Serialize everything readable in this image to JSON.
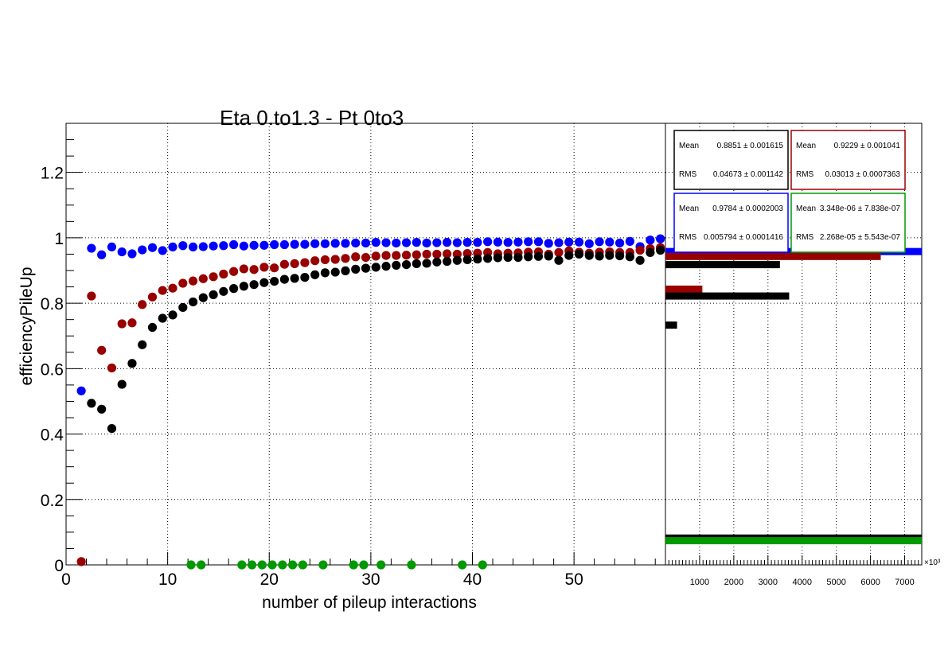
{
  "chart_data": [
    {
      "type": "scatter",
      "title": "Eta 0.to1.3 - Pt 0to3",
      "xlabel": "number of pileup interactions",
      "ylabel": "efficiencyPileUp",
      "xlim": [
        0,
        59
      ],
      "ylim": [
        0,
        1.35
      ],
      "x_ticks": [
        "0",
        "10",
        "20",
        "30",
        "40",
        "50"
      ],
      "y_ticks": [
        "0",
        "0.2",
        "0.4",
        "0.6",
        "0.8",
        "1",
        "1.2"
      ],
      "grid": true,
      "colors": {
        "black": "#000000",
        "red": "#990000",
        "blue": "#0000ff",
        "green": "#009900"
      },
      "series": [
        {
          "color": "#0000ff",
          "x": [
            1.5,
            2.5,
            3.5,
            4.5,
            5.5,
            6.5,
            7.5,
            8.5,
            9.5,
            10.5,
            11.5,
            12.5,
            13.5,
            14.5,
            15.5,
            16.5,
            17.5,
            18.5,
            19.5,
            20.5,
            21.5,
            22.5,
            23.5,
            24.5,
            25.5,
            26.5,
            27.5,
            28.5,
            29.5,
            30.5,
            31.5,
            32.5,
            33.5,
            34.5,
            35.5,
            36.5,
            37.5,
            38.5,
            39.5,
            40.5,
            41.5,
            42.5,
            43.5,
            44.5,
            45.5,
            46.5,
            47.5,
            48.5,
            49.5,
            50.5,
            51.5,
            52.5,
            53.5,
            54.5,
            55.5,
            56.5,
            57.5,
            58.5
          ],
          "y": [
            0.532,
            0.968,
            0.948,
            0.972,
            0.957,
            0.951,
            0.963,
            0.97,
            0.961,
            0.972,
            0.976,
            0.972,
            0.973,
            0.975,
            0.976,
            0.979,
            0.975,
            0.977,
            0.977,
            0.979,
            0.979,
            0.98,
            0.98,
            0.982,
            0.982,
            0.983,
            0.983,
            0.984,
            0.984,
            0.986,
            0.985,
            0.984,
            0.985,
            0.986,
            0.984,
            0.985,
            0.986,
            0.985,
            0.986,
            0.986,
            0.988,
            0.987,
            0.986,
            0.987,
            0.988,
            0.988,
            0.983,
            0.985,
            0.987,
            0.987,
            0.982,
            0.988,
            0.987,
            0.984,
            0.989,
            0.973,
            0.993,
            0.997
          ]
        },
        {
          "color": "#990000",
          "x": [
            1.5,
            2.5,
            3.5,
            4.5,
            5.5,
            6.5,
            7.5,
            8.5,
            9.5,
            10.5,
            11.5,
            12.5,
            13.5,
            14.5,
            15.5,
            16.5,
            17.5,
            18.5,
            19.5,
            20.5,
            21.5,
            22.5,
            23.5,
            24.5,
            25.5,
            26.5,
            27.5,
            28.5,
            29.5,
            30.5,
            31.5,
            32.5,
            33.5,
            34.5,
            35.5,
            36.5,
            37.5,
            38.5,
            39.5,
            40.5,
            41.5,
            42.5,
            43.5,
            44.5,
            45.5,
            46.5,
            47.5,
            48.5,
            49.5,
            50.5,
            51.5,
            52.5,
            53.5,
            54.5,
            55.5,
            56.5,
            57.5,
            58.5
          ],
          "y": [
            0.01,
            0.822,
            0.656,
            0.602,
            0.737,
            0.74,
            0.796,
            0.819,
            0.839,
            0.846,
            0.861,
            0.868,
            0.875,
            0.881,
            0.889,
            0.897,
            0.905,
            0.903,
            0.91,
            0.908,
            0.919,
            0.921,
            0.924,
            0.93,
            0.933,
            0.934,
            0.937,
            0.942,
            0.94,
            0.944,
            0.946,
            0.946,
            0.947,
            0.948,
            0.95,
            0.95,
            0.951,
            0.95,
            0.952,
            0.953,
            0.955,
            0.951,
            0.953,
            0.954,
            0.956,
            0.957,
            0.95,
            0.955,
            0.96,
            0.956,
            0.953,
            0.956,
            0.957,
            0.955,
            0.955,
            0.962,
            0.967,
            0.97
          ]
        },
        {
          "color": "#000000",
          "x": [
            2.5,
            3.5,
            4.5,
            5.5,
            6.5,
            7.5,
            8.5,
            9.5,
            10.5,
            11.5,
            12.5,
            13.5,
            14.5,
            15.5,
            16.5,
            17.5,
            18.5,
            19.5,
            20.5,
            21.5,
            22.5,
            23.5,
            24.5,
            25.5,
            26.5,
            27.5,
            28.5,
            29.5,
            30.5,
            31.5,
            32.5,
            33.5,
            34.5,
            35.5,
            36.5,
            37.5,
            38.5,
            39.5,
            40.5,
            41.5,
            42.5,
            43.5,
            44.5,
            45.5,
            46.5,
            47.5,
            48.5,
            49.5,
            50.5,
            51.5,
            52.5,
            53.5,
            54.5,
            55.5,
            56.5,
            57.5,
            58.5
          ],
          "y": [
            0.494,
            0.476,
            0.417,
            0.552,
            0.616,
            0.673,
            0.726,
            0.754,
            0.764,
            0.787,
            0.804,
            0.817,
            0.826,
            0.836,
            0.845,
            0.852,
            0.857,
            0.863,
            0.867,
            0.873,
            0.876,
            0.879,
            0.887,
            0.893,
            0.895,
            0.899,
            0.904,
            0.907,
            0.91,
            0.913,
            0.916,
            0.918,
            0.921,
            0.922,
            0.926,
            0.928,
            0.931,
            0.933,
            0.935,
            0.937,
            0.939,
            0.94,
            0.94,
            0.942,
            0.943,
            0.944,
            0.931,
            0.946,
            0.95,
            0.946,
            0.944,
            0.946,
            0.945,
            0.942,
            0.931,
            0.955,
            0.962
          ]
        },
        {
          "color": "#009900",
          "x": [
            12.3,
            13.3,
            17.3,
            18.3,
            19.3,
            20.3,
            21.3,
            22.3,
            23.3,
            25.3,
            28.3,
            29.3,
            31.0,
            34.0,
            39.0,
            41.0
          ],
          "y": [
            0,
            0,
            0,
            0,
            0,
            0,
            0,
            0,
            0,
            0,
            0,
            0,
            0,
            0,
            0,
            0
          ]
        }
      ]
    },
    {
      "type": "bar",
      "orientation": "horizontal",
      "xlim": [
        0,
        7500
      ],
      "x_ticks": [
        "1000",
        "2000",
        "3000",
        "4000",
        "5000",
        "6000",
        "7000"
      ],
      "x_multiplier": "×10³",
      "bins": [
        {
          "color": "#0000ff",
          "y": 0.958,
          "value": 7500
        },
        {
          "color": "#990000",
          "y": 0.943,
          "value": 6300
        },
        {
          "color": "#000000",
          "y": 0.918,
          "value": 3350
        },
        {
          "color": "#990000",
          "y": 0.843,
          "value": 1080
        },
        {
          "color": "#000000",
          "y": 0.822,
          "value": 3620
        },
        {
          "color": "#000000",
          "y": 0.733,
          "value": 340
        },
        {
          "color": "#000000",
          "y": 0.082,
          "value": 7500
        },
        {
          "color": "#009900",
          "y": 0.074,
          "value": 7500
        }
      ],
      "stats": [
        {
          "color": "#000000",
          "mean_label": "Mean",
          "mean": "0.8851 ± 0.001615",
          "rms_label": "RMS",
          "rms": "0.04673 ± 0.001142"
        },
        {
          "color": "#990000",
          "mean_label": "Mean",
          "mean": "0.9229 ± 0.001041",
          "rms_label": "RMS",
          "rms": "0.03013 ± 0.0007363"
        },
        {
          "color": "#0000ff",
          "mean_label": "Mean",
          "mean": "0.9784 ± 0.0002003",
          "rms_label": "RMS",
          "rms": "0.005794 ± 0.0001416"
        },
        {
          "color": "#009900",
          "mean_label": "Mean",
          "mean": "3.348e-06 ± 7.838e-07",
          "rms_label": "RMS",
          "rms": "2.268e-05 ± 5.543e-07"
        }
      ]
    }
  ]
}
